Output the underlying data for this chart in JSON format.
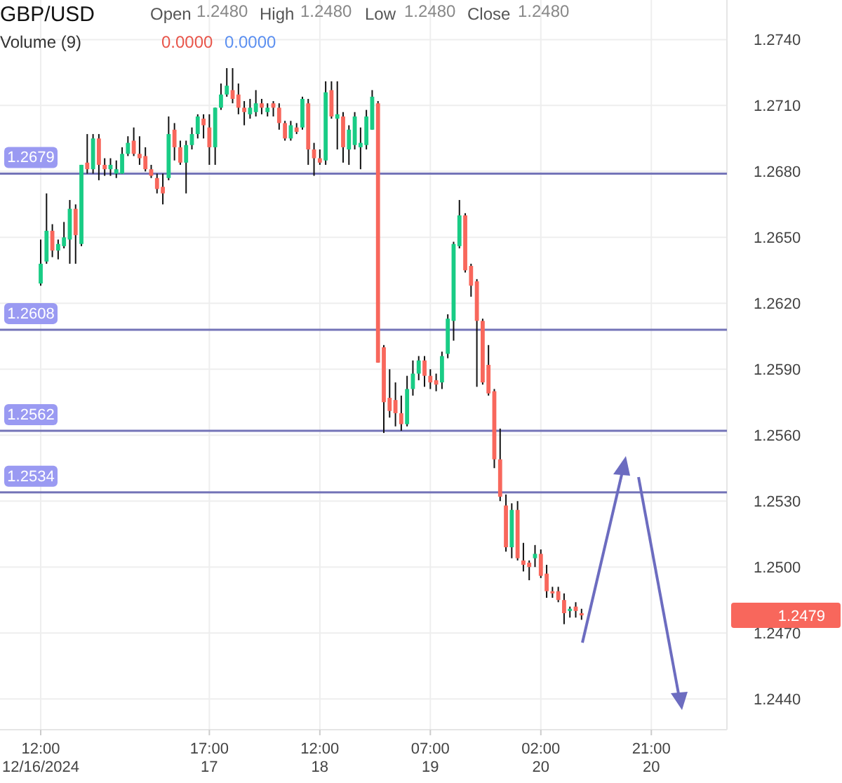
{
  "chart_data": {
    "type": "candlestick",
    "title": "GBP/USD",
    "annotations": [
      "Open",
      "1.2480",
      "High",
      "1.2480",
      "Low",
      "1.2480",
      "Close",
      "1.2480",
      "Volume (9)",
      "0.0000",
      "0.0000",
      "1.2479"
    ],
    "colors": [
      "#19cc85",
      "#19cc85",
      "#f8675c",
      "#19cc85",
      "#19cc85",
      "#19cc85",
      "#f8675c",
      "#19cc85",
      "#f8675c",
      "#19cc85",
      "#f8675c",
      "#f8675c",
      "#19cc85",
      "#19cc85",
      "#19cc85",
      "#19cc85",
      "#f8675c",
      "#f8675c",
      "#f8675c",
      "#f8675c",
      "#f8675c",
      "#f8675c",
      "#19cc85",
      "#f8675c",
      "#f8675c",
      "#19cc85",
      "#19cc85",
      "#19cc85",
      "#f8675c",
      "#f8675c",
      "#19cc85",
      "#19cc85",
      "#19cc85",
      "#f8675c",
      "#f8675c",
      "#f8675c",
      "#19cc85",
      "#19cc85",
      "#f8675c",
      "#19cc85",
      "#f8675c",
      "#f8675c",
      "#f8675c",
      "#19cc85",
      "#f8675c",
      "#19cc85",
      "#f8675c",
      "#f8675c",
      "#f8675c",
      "#19cc85",
      "#f8675c",
      "#19cc85",
      "#f8675c",
      "#19cc85",
      "#19cc85",
      "#19cc85",
      "#19cc85",
      "#19cc85",
      "#f8675c",
      "#f8675c",
      "#f8675c",
      "#f8675c",
      "#f8675c",
      "#19cc85",
      "#19cc85",
      "#19cc85",
      "#f8675c",
      "#f8675c",
      "#f8675c",
      "#19cc85",
      "#19cc85",
      "#19cc85",
      "#19cc85",
      "#f8675c",
      "#f8675c",
      "#f8675c",
      "#f8675c",
      "#f8675c",
      "#f8675c",
      "#f8675c",
      "#f8675c",
      "#19cc85",
      "#f8675c",
      "#f8675c",
      "#f8675c",
      "#19cc85",
      "#f8675c",
      "#f8675c",
      "#f8675c",
      "#f8675c",
      "#f8675c",
      "#19cc85",
      "#f8675c",
      "#f8675c"
    ],
    "x": [
      "2024-12-16T12:00",
      "2024-12-16T13:00",
      "2024-12-16T14:00",
      "2024-12-16T15:00",
      "2024-12-16T16:00",
      "2024-12-16T17:00",
      "2024-12-16T18:00",
      "2024-12-16T19:00",
      "2024-12-16T20:00",
      "2024-12-16T21:00",
      "2024-12-16T22:00",
      "2024-12-16T23:00",
      "2024-12-17T00:00",
      "2024-12-17T01:00",
      "2024-12-17T02:00",
      "2024-12-17T03:00",
      "2024-12-17T04:00",
      "2024-12-17T05:00",
      "2024-12-17T06:00",
      "2024-12-17T07:00",
      "2024-12-17T08:00",
      "2024-12-17T09:00",
      "2024-12-17T10:00",
      "2024-12-17T11:00",
      "2024-12-17T12:00",
      "2024-12-17T13:00",
      "2024-12-17T14:00",
      "2024-12-17T15:00",
      "2024-12-17T16:00",
      "2024-12-17T17:00",
      "2024-12-17T18:00",
      "2024-12-17T19:00",
      "2024-12-17T20:00",
      "2024-12-17T21:00",
      "2024-12-17T22:00",
      "2024-12-17T23:00",
      "2024-12-18T00:00",
      "2024-12-18T01:00",
      "2024-12-18T02:00",
      "2024-12-18T03:00",
      "2024-12-18T04:00",
      "2024-12-18T05:00",
      "2024-12-18T06:00",
      "2024-12-18T07:00",
      "2024-12-18T08:00",
      "2024-12-18T09:00",
      "2024-12-18T10:00",
      "2024-12-18T11:00",
      "2024-12-18T12:00",
      "2024-12-18T13:00",
      "2024-12-18T14:00",
      "2024-12-18T15:00",
      "2024-12-18T16:00",
      "2024-12-18T17:00",
      "2024-12-18T18:00",
      "2024-12-18T19:00",
      "2024-12-18T20:00",
      "2024-12-18T21:00",
      "2024-12-18T22:00",
      "2024-12-18T23:00",
      "2024-12-19T00:00",
      "2024-12-19T01:00",
      "2024-12-19T02:00",
      "2024-12-19T03:00",
      "2024-12-19T04:00",
      "2024-12-19T05:00",
      "2024-12-19T06:00",
      "2024-12-19T07:00",
      "2024-12-19T08:00",
      "2024-12-19T09:00",
      "2024-12-19T10:00",
      "2024-12-19T11:00",
      "2024-12-19T12:00",
      "2024-12-19T13:00",
      "2024-12-19T14:00",
      "2024-12-19T15:00",
      "2024-12-19T16:00",
      "2024-12-19T17:00",
      "2024-12-19T18:00",
      "2024-12-19T19:00",
      "2024-12-19T20:00",
      "2024-12-19T21:00",
      "2024-12-19T22:00",
      "2024-12-19T23:00",
      "2024-12-20T00:00",
      "2024-12-20T01:00",
      "2024-12-20T02:00",
      "2024-12-20T03:00",
      "2024-12-20T04:00",
      "2024-12-20T05:00",
      "2024-12-20T06:00",
      "2024-12-20T07:00",
      "2024-12-20T08:00",
      "2024-12-20T09:00"
    ],
    "ohlc": [
      [
        1.2629,
        1.2649,
        1.2628,
        1.2638
      ],
      [
        1.2639,
        1.267,
        1.2638,
        1.2653
      ],
      [
        1.2653,
        1.2656,
        1.2641,
        1.2644
      ],
      [
        1.2644,
        1.2649,
        1.264,
        1.2647
      ],
      [
        1.2646,
        1.2657,
        1.2645,
        1.265
      ],
      [
        1.2649,
        1.2667,
        1.2638,
        1.2663
      ],
      [
        1.2663,
        1.2665,
        1.2638,
        1.2651
      ],
      [
        1.2647,
        1.2683,
        1.2646,
        1.2683
      ],
      [
        1.2684,
        1.2697,
        1.2679,
        1.2681
      ],
      [
        1.2681,
        1.2697,
        1.2679,
        1.2695
      ],
      [
        1.2695,
        1.2697,
        1.2676,
        1.2683
      ],
      [
        1.2683,
        1.2686,
        1.2678,
        1.2681
      ],
      [
        1.2681,
        1.2686,
        1.2678,
        1.2683
      ],
      [
        1.2679,
        1.2685,
        1.2677,
        1.2681
      ],
      [
        1.2679,
        1.2691,
        1.2679,
        1.2688
      ],
      [
        1.2688,
        1.2696,
        1.2687,
        1.2693
      ],
      [
        1.2694,
        1.27,
        1.2687,
        1.2688
      ],
      [
        1.2688,
        1.2696,
        1.2683,
        1.2686
      ],
      [
        1.2687,
        1.2691,
        1.268,
        1.2681
      ],
      [
        1.2681,
        1.2683,
        1.2677,
        1.2678
      ],
      [
        1.2677,
        1.2679,
        1.267,
        1.2672
      ],
      [
        1.2673,
        1.2679,
        1.2665,
        1.267
      ],
      [
        1.2677,
        1.2705,
        1.2676,
        1.2697
      ],
      [
        1.2699,
        1.2702,
        1.2685,
        1.2691
      ],
      [
        1.2691,
        1.2694,
        1.2683,
        1.2684
      ],
      [
        1.2684,
        1.2694,
        1.267,
        1.2692
      ],
      [
        1.2692,
        1.27,
        1.269,
        1.2697
      ],
      [
        1.2697,
        1.2706,
        1.2695,
        1.2705
      ],
      [
        1.2704,
        1.2706,
        1.2695,
        1.2701
      ],
      [
        1.27,
        1.2706,
        1.2683,
        1.2691
      ],
      [
        1.2691,
        1.2709,
        1.2683,
        1.2709
      ],
      [
        1.2709,
        1.272,
        1.2708,
        1.2715
      ],
      [
        1.2715,
        1.2727,
        1.2714,
        1.2719
      ],
      [
        1.2717,
        1.2727,
        1.2711,
        1.2713
      ],
      [
        1.2715,
        1.272,
        1.2706,
        1.2709
      ],
      [
        1.2709,
        1.2712,
        1.2701,
        1.2707
      ],
      [
        1.2706,
        1.2713,
        1.2704,
        1.2709
      ],
      [
        1.2707,
        1.2717,
        1.2705,
        1.2711
      ],
      [
        1.2711,
        1.2713,
        1.2706,
        1.2709
      ],
      [
        1.2707,
        1.2711,
        1.2705,
        1.2709
      ],
      [
        1.2711,
        1.2712,
        1.2705,
        1.2709
      ],
      [
        1.2709,
        1.2711,
        1.2699,
        1.2702
      ],
      [
        1.2702,
        1.2703,
        1.2694,
        1.2695
      ],
      [
        1.2695,
        1.2703,
        1.2694,
        1.2701
      ],
      [
        1.27,
        1.2702,
        1.2697,
        1.2698
      ],
      [
        1.27,
        1.2714,
        1.2699,
        1.2713
      ],
      [
        1.2711,
        1.2713,
        1.2683,
        1.269
      ],
      [
        1.269,
        1.2693,
        1.2678,
        1.2686
      ],
      [
        1.2686,
        1.269,
        1.2683,
        1.2684
      ],
      [
        1.2685,
        1.2721,
        1.2683,
        1.2716
      ],
      [
        1.2717,
        1.2721,
        1.2704,
        1.2705
      ],
      [
        1.2704,
        1.2721,
        1.269,
        1.2706
      ],
      [
        1.2705,
        1.2707,
        1.2684,
        1.2691
      ],
      [
        1.269,
        1.2701,
        1.2683,
        1.2699
      ],
      [
        1.2692,
        1.2707,
        1.269,
        1.2705
      ],
      [
        1.2691,
        1.27,
        1.2681,
        1.2693
      ],
      [
        1.2692,
        1.2708,
        1.269,
        1.2705
      ],
      [
        1.2699,
        1.2717,
        1.2699,
        1.2714
      ],
      [
        1.2711,
        1.2712,
        1.2593,
        1.2593
      ],
      [
        1.26,
        1.2601,
        1.2561,
        1.2575
      ],
      [
        1.2577,
        1.259,
        1.2568,
        1.2571
      ],
      [
        1.2576,
        1.2584,
        1.2564,
        1.257
      ],
      [
        1.257,
        1.2578,
        1.2562,
        1.2565
      ],
      [
        1.2565,
        1.2587,
        1.2564,
        1.2581
      ],
      [
        1.2581,
        1.2594,
        1.2578,
        1.2588
      ],
      [
        1.2588,
        1.2596,
        1.2585,
        1.2594
      ],
      [
        1.2594,
        1.2596,
        1.2582,
        1.2587
      ],
      [
        1.2587,
        1.259,
        1.2581,
        1.2584
      ],
      [
        1.2585,
        1.2588,
        1.258,
        1.2583
      ],
      [
        1.2584,
        1.2598,
        1.2581,
        1.2596
      ],
      [
        1.2597,
        1.2615,
        1.2595,
        1.2613
      ],
      [
        1.2612,
        1.2648,
        1.2603,
        1.2647
      ],
      [
        1.2646,
        1.2667,
        1.2645,
        1.266
      ],
      [
        1.266,
        1.2661,
        1.2634,
        1.2635
      ],
      [
        1.2637,
        1.2638,
        1.2623,
        1.2628
      ],
      [
        1.263,
        1.2631,
        1.2582,
        1.2612
      ],
      [
        1.2612,
        1.2613,
        1.2583,
        1.2584
      ],
      [
        1.2592,
        1.2601,
        1.2578,
        1.2579
      ],
      [
        1.258,
        1.2581,
        1.2545,
        1.2549
      ],
      [
        1.2549,
        1.2563,
        1.253,
        1.2532
      ],
      [
        1.2528,
        1.2533,
        1.2507,
        1.2509
      ],
      [
        1.2509,
        1.2529,
        1.2504,
        1.2526
      ],
      [
        1.2526,
        1.253,
        1.2503,
        1.2504
      ],
      [
        1.2503,
        1.2511,
        1.2498,
        1.2501
      ],
      [
        1.2502,
        1.2503,
        1.2494,
        1.25
      ],
      [
        1.2504,
        1.251,
        1.25,
        1.2506
      ],
      [
        1.2506,
        1.2508,
        1.2495,
        1.2496
      ],
      [
        1.2497,
        1.2501,
        1.2486,
        1.2489
      ],
      [
        1.2489,
        1.2491,
        1.2486,
        1.2488
      ],
      [
        1.2489,
        1.2491,
        1.2484,
        1.2485
      ],
      [
        1.2485,
        1.2488,
        1.2474,
        1.2479
      ],
      [
        1.248,
        1.2482,
        1.2477,
        1.2481
      ],
      [
        1.2482,
        1.2484,
        1.2477,
        1.248
      ],
      [
        1.2479,
        1.2481,
        1.2476,
        1.2478
      ]
    ],
    "xlim": [
      "2024-12-16T05:00",
      "2024-12-21T10:00"
    ],
    "xticks": [
      {
        "value": "2024-12-16T12:00",
        "label": "12:00\n12/16/2024"
      },
      {
        "value": "2024-12-17T17:00",
        "label": "17:00\n17"
      },
      {
        "value": "2024-12-18T12:00",
        "label": "12:00\n18"
      },
      {
        "value": "2024-12-19T07:00",
        "label": "07:00\n19"
      },
      {
        "value": "2024-12-20T02:00",
        "label": "02:00\n20"
      },
      {
        "value": "2024-12-20T21:00",
        "label": "21:00\n20"
      }
    ],
    "ylim": [
      1.2426,
      1.2758
    ],
    "yticks": [
      {
        "value": 1.244,
        "label": "1.2440"
      },
      {
        "value": 1.247,
        "label": "1.2470"
      },
      {
        "value": 1.25,
        "label": "1.2500"
      },
      {
        "value": 1.253,
        "label": "1.2530"
      },
      {
        "value": 1.256,
        "label": "1.2560"
      },
      {
        "value": 1.259,
        "label": "1.2590"
      },
      {
        "value": 1.262,
        "label": "1.2620"
      },
      {
        "value": 1.265,
        "label": "1.2650"
      },
      {
        "value": 1.268,
        "label": "1.2680"
      },
      {
        "value": 1.271,
        "label": "1.2710"
      },
      {
        "value": 1.274,
        "label": "1.2740"
      }
    ],
    "ref_lines": [
      {
        "axis": "y",
        "value": 1.2679,
        "label": "1.2679",
        "color": "#7474b8"
      },
      {
        "axis": "y",
        "value": 1.2608,
        "label": "1.2608",
        "color": "#7474b8"
      },
      {
        "axis": "y",
        "value": 1.2562,
        "label": "1.2562",
        "color": "#7474b8"
      },
      {
        "axis": "y",
        "value": 1.2534,
        "label": "1.2534",
        "color": "#7474b8"
      }
    ],
    "grid": true
  }
}
